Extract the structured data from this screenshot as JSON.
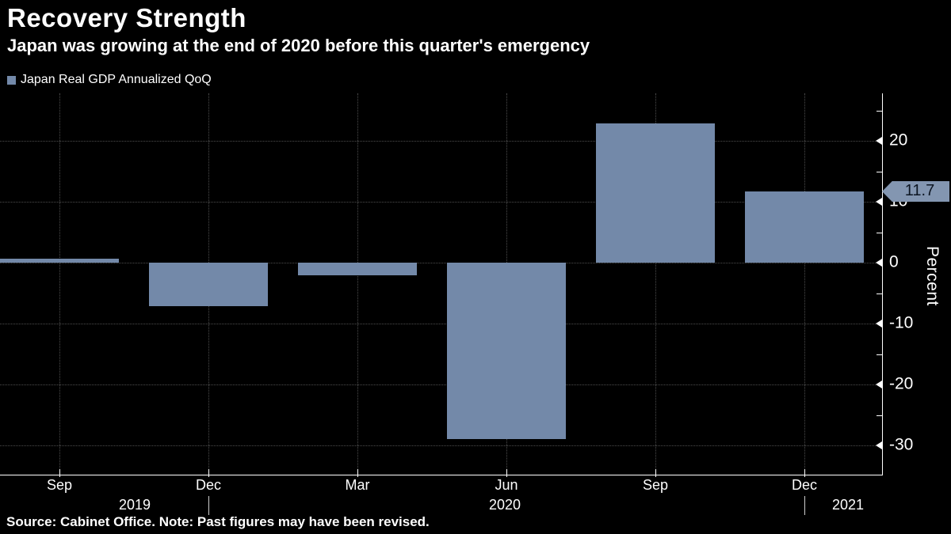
{
  "header": {
    "title": "Recovery Strength",
    "subtitle": "Japan was growing at the end of 2020 before this quarter's emergency"
  },
  "legend": {
    "label": "Japan Real GDP Annualized QoQ",
    "swatch_color": "#7389a9"
  },
  "chart_data": {
    "type": "bar",
    "title": "Recovery Strength",
    "subtitle": "Japan was growing at the end of 2020 before this quarter's emergency",
    "series_name": "Japan Real GDP Annualized QoQ",
    "categories": [
      "Sep 2019",
      "Dec 2019",
      "Mar 2020",
      "Jun 2020",
      "Sep 2020",
      "Dec 2020"
    ],
    "values": [
      0.6,
      -7.1,
      -2.1,
      -29.0,
      22.9,
      11.7
    ],
    "x_tick_labels": [
      "Sep",
      "Dec",
      "Mar",
      "Jun",
      "Sep",
      "Dec"
    ],
    "year_labels": [
      "2019",
      "2020",
      "2021"
    ],
    "xlabel": "",
    "ylabel": "Percent",
    "ylim": [
      -34.8,
      27.8
    ],
    "yticks_major": [
      20,
      10,
      0,
      -10,
      -20,
      -30
    ],
    "yticks_minor": [
      25,
      15,
      5,
      -5,
      -15,
      -25
    ],
    "grid": "dotted",
    "legend_position": "top-left",
    "axis_side": "right",
    "last_value_label": "11.7",
    "colors": {
      "background": "#000000",
      "bar": "#7389a9",
      "grid": "#4d4d4d",
      "axis": "#ffffff",
      "text": "#ffffff",
      "tag_background": "#8396b1",
      "tag_text": "#0d1623"
    }
  },
  "footer": {
    "source_note": "Source: Cabinet Office. Note: Past figures may have been revised."
  }
}
